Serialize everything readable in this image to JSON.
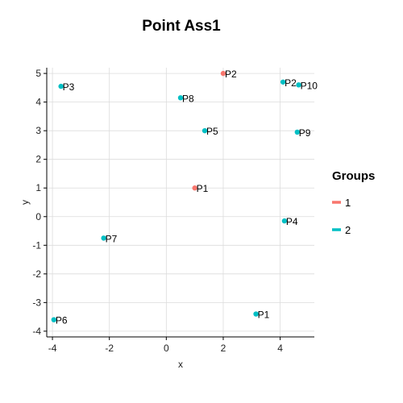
{
  "chart_data": {
    "type": "scatter",
    "title": "Point Ass1",
    "xlabel": "x",
    "ylabel": "y",
    "xlim": [
      -4.2,
      5.2
    ],
    "ylim": [
      -4.2,
      5.2
    ],
    "x_ticks": [
      -4,
      -2,
      0,
      2,
      4
    ],
    "y_ticks": [
      -4,
      -3,
      -2,
      -1,
      0,
      1,
      2,
      3,
      4,
      5
    ],
    "grid": true,
    "legend": {
      "title": "Groups",
      "position": "right"
    },
    "series": [
      {
        "name": "1",
        "color": "#F8766D",
        "points": [
          {
            "label": "P1",
            "x": 1.0,
            "y": 1.0
          },
          {
            "label": "P2",
            "x": 2.0,
            "y": 5.0
          }
        ]
      },
      {
        "name": "2",
        "color": "#00BFC4",
        "points": [
          {
            "label": "P1",
            "x": 3.15,
            "y": -3.4
          },
          {
            "label": "P2",
            "x": 4.1,
            "y": 4.7
          },
          {
            "label": "P3",
            "x": -3.7,
            "y": 4.55
          },
          {
            "label": "P4",
            "x": 4.15,
            "y": -0.15
          },
          {
            "label": "P5",
            "x": 1.35,
            "y": 3.0
          },
          {
            "label": "P6",
            "x": -3.95,
            "y": -3.6
          },
          {
            "label": "P7",
            "x": -2.2,
            "y": -0.75
          },
          {
            "label": "P8",
            "x": 0.5,
            "y": 4.15
          },
          {
            "label": "P9",
            "x": 4.6,
            "y": 2.95
          },
          {
            "label": "P10",
            "x": 4.65,
            "y": 4.6
          }
        ]
      }
    ]
  }
}
